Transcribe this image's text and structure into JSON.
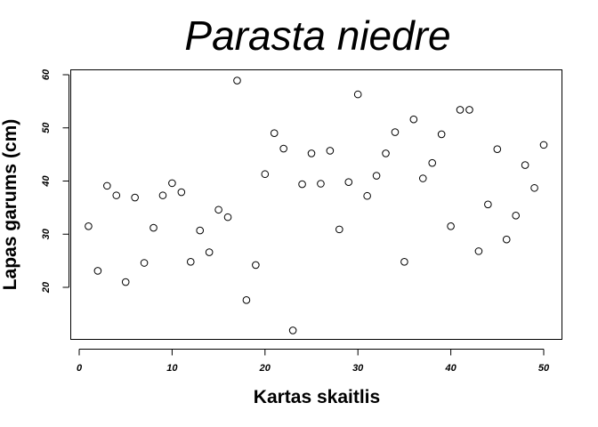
{
  "chart_data": {
    "type": "scatter",
    "title": "Parasta niedre",
    "xlabel": "Kartas skaitlis",
    "ylabel": "Lapas garums (cm)",
    "xlim": [
      0,
      50
    ],
    "ylim": [
      10,
      60
    ],
    "x_ticks": [
      "0",
      "10",
      "20",
      "30",
      "40",
      "50"
    ],
    "y_ticks": [
      "20",
      "30",
      "40",
      "50",
      "60"
    ],
    "grid": false,
    "marker": "open-circle",
    "x": [
      1,
      2,
      3,
      4,
      5,
      6,
      7,
      8,
      9,
      10,
      11,
      12,
      13,
      14,
      15,
      16,
      17,
      18,
      19,
      20,
      21,
      22,
      23,
      24,
      25,
      26,
      27,
      28,
      29,
      30,
      31,
      32,
      33,
      34,
      35,
      36,
      37,
      38,
      39,
      40,
      41,
      42,
      43,
      44,
      45,
      46,
      47,
      48,
      49,
      50
    ],
    "y": [
      31.5,
      23.1,
      39.1,
      37.3,
      21.0,
      36.9,
      24.6,
      31.2,
      37.3,
      39.6,
      37.9,
      24.8,
      30.7,
      26.6,
      34.6,
      33.2,
      58.9,
      17.6,
      24.2,
      41.3,
      49.0,
      46.1,
      11.9,
      39.4,
      45.2,
      39.5,
      45.7,
      30.9,
      39.8,
      56.3,
      37.2,
      41.0,
      45.2,
      49.2,
      24.8,
      51.6,
      40.5,
      43.4,
      48.8,
      31.5,
      53.4,
      53.4,
      26.8,
      35.6,
      46.0,
      29.0,
      33.5,
      43.0,
      38.7,
      46.8
    ]
  }
}
